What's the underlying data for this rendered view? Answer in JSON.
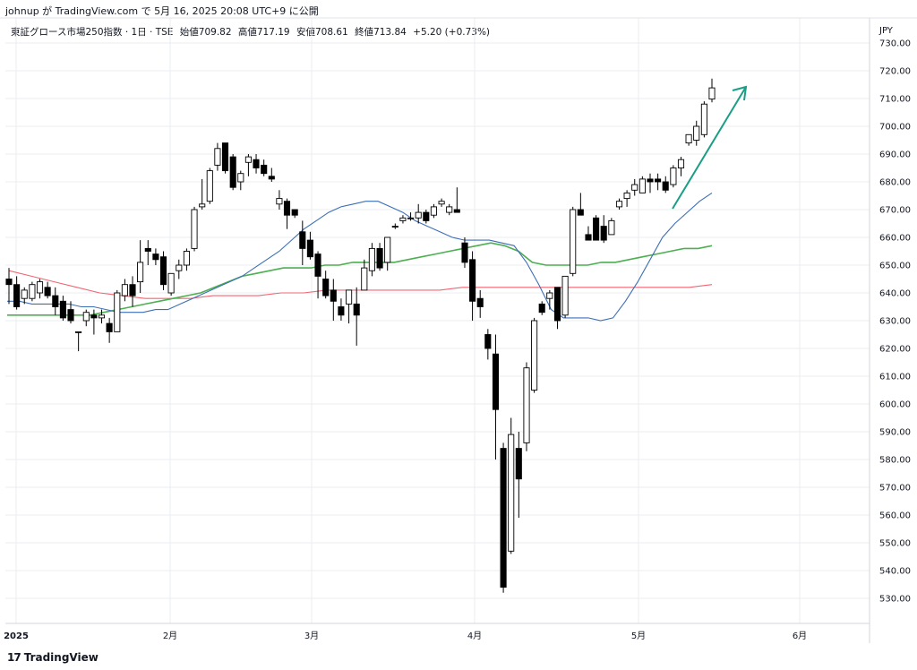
{
  "header": {
    "published_by": "johnup が TradingView.com で 5月 16, 2025 20:08 UTC+9 に公開"
  },
  "symbol": {
    "name": "東証グロース市場250指数 · 1日 · TSE",
    "open_label": "始値",
    "open": "709.82",
    "high_label": "高値",
    "high": "717.19",
    "low_label": "安値",
    "low": "708.61",
    "close_label": "終値",
    "close": "713.84",
    "change": "+5.20 (+0.73%)"
  },
  "currency": "JPY",
  "footer": {
    "logo_text": "TradingView",
    "logo_mark": "17"
  },
  "colors": {
    "up_fill": "#ffffff",
    "down_fill": "#000000",
    "ma_short": "#3d6fb6",
    "ma_mid": "#4caf50",
    "ma_long": "#f06674",
    "arrow": "#1a9e86",
    "grid": "#e8ecf2"
  },
  "chart_data": {
    "type": "candlestick",
    "y_axis_ticks": [
      "730.00",
      "720.00",
      "710.00",
      "700.00",
      "690.00",
      "680.00",
      "670.00",
      "660.00",
      "650.00",
      "640.00",
      "630.00",
      "620.00",
      "610.00",
      "600.00",
      "590.00",
      "580.00",
      "570.00",
      "560.00",
      "550.00",
      "540.00",
      "530.00"
    ],
    "ylim": [
      526,
      734
    ],
    "x_axis_labels": [
      "2025",
      "2月",
      "3月",
      "4月",
      "5月",
      "6月"
    ],
    "grid": true,
    "candles": [
      {
        "o": 645,
        "h": 649,
        "l": 636,
        "c": 643
      },
      {
        "o": 643,
        "h": 646,
        "l": 634,
        "c": 635
      },
      {
        "o": 638,
        "h": 642,
        "l": 636,
        "c": 641
      },
      {
        "o": 638,
        "h": 644,
        "l": 637,
        "c": 643
      },
      {
        "o": 640,
        "h": 645,
        "l": 638,
        "c": 644
      },
      {
        "o": 642,
        "h": 644,
        "l": 638,
        "c": 639
      },
      {
        "o": 639,
        "h": 642,
        "l": 632,
        "c": 635
      },
      {
        "o": 637,
        "h": 639,
        "l": 630,
        "c": 631
      },
      {
        "o": 634,
        "h": 637,
        "l": 629,
        "c": 630
      },
      {
        "o": 626,
        "h": 626,
        "l": 619,
        "c": 626
      },
      {
        "o": 630,
        "h": 634,
        "l": 628,
        "c": 633
      },
      {
        "o": 632,
        "h": 634,
        "l": 625,
        "c": 631
      },
      {
        "o": 631,
        "h": 634,
        "l": 629,
        "c": 632
      },
      {
        "o": 629,
        "h": 631,
        "l": 622,
        "c": 626
      },
      {
        "o": 626,
        "h": 641,
        "l": 626,
        "c": 640
      },
      {
        "o": 639,
        "h": 645,
        "l": 637,
        "c": 643
      },
      {
        "o": 643,
        "h": 646,
        "l": 635,
        "c": 639
      },
      {
        "o": 644,
        "h": 659,
        "l": 640,
        "c": 651
      },
      {
        "o": 656,
        "h": 659,
        "l": 650,
        "c": 655
      },
      {
        "o": 654,
        "h": 656,
        "l": 650,
        "c": 652
      },
      {
        "o": 653,
        "h": 655,
        "l": 641,
        "c": 643
      },
      {
        "o": 640,
        "h": 647,
        "l": 639,
        "c": 647
      },
      {
        "o": 648,
        "h": 652,
        "l": 645,
        "c": 650
      },
      {
        "o": 650,
        "h": 656,
        "l": 648,
        "c": 655
      },
      {
        "o": 656,
        "h": 671,
        "l": 655,
        "c": 670
      },
      {
        "o": 671,
        "h": 681,
        "l": 670,
        "c": 672
      },
      {
        "o": 673,
        "h": 685,
        "l": 672,
        "c": 684
      },
      {
        "o": 686,
        "h": 694,
        "l": 684,
        "c": 692
      },
      {
        "o": 694,
        "h": 694,
        "l": 683,
        "c": 684
      },
      {
        "o": 689,
        "h": 690,
        "l": 677,
        "c": 678
      },
      {
        "o": 680,
        "h": 684,
        "l": 677,
        "c": 683
      },
      {
        "o": 687,
        "h": 690,
        "l": 682,
        "c": 689
      },
      {
        "o": 688,
        "h": 690,
        "l": 683,
        "c": 685
      },
      {
        "o": 686,
        "h": 688,
        "l": 682,
        "c": 683
      },
      {
        "o": 682,
        "h": 685,
        "l": 680,
        "c": 681
      },
      {
        "o": 672,
        "h": 677,
        "l": 670,
        "c": 674
      },
      {
        "o": 673,
        "h": 674,
        "l": 663,
        "c": 668
      },
      {
        "o": 670,
        "h": 670,
        "l": 667,
        "c": 668
      },
      {
        "o": 662,
        "h": 666,
        "l": 650,
        "c": 656
      },
      {
        "o": 659,
        "h": 662,
        "l": 652,
        "c": 653
      },
      {
        "o": 654,
        "h": 655,
        "l": 638,
        "c": 646
      },
      {
        "o": 645,
        "h": 648,
        "l": 638,
        "c": 639
      },
      {
        "o": 641,
        "h": 645,
        "l": 630,
        "c": 637
      },
      {
        "o": 635,
        "h": 638,
        "l": 630,
        "c": 632
      },
      {
        "o": 636,
        "h": 641,
        "l": 629,
        "c": 641
      },
      {
        "o": 636,
        "h": 642,
        "l": 621,
        "c": 632
      },
      {
        "o": 641,
        "h": 652,
        "l": 641,
        "c": 649
      },
      {
        "o": 648,
        "h": 658,
        "l": 646,
        "c": 656
      },
      {
        "o": 656,
        "h": 658,
        "l": 648,
        "c": 649
      },
      {
        "o": 651,
        "h": 660,
        "l": 648,
        "c": 660
      },
      {
        "o": 664,
        "h": 665,
        "l": 663,
        "c": 664
      },
      {
        "o": 666,
        "h": 668,
        "l": 665,
        "c": 667
      },
      {
        "o": 667,
        "h": 669,
        "l": 666,
        "c": 667
      },
      {
        "o": 667,
        "h": 672,
        "l": 665,
        "c": 669
      },
      {
        "o": 669,
        "h": 670,
        "l": 665,
        "c": 666
      },
      {
        "o": 668,
        "h": 672,
        "l": 667,
        "c": 671
      },
      {
        "o": 672,
        "h": 674,
        "l": 671,
        "c": 673
      },
      {
        "o": 669,
        "h": 672,
        "l": 668,
        "c": 671
      },
      {
        "o": 670,
        "h": 678,
        "l": 669,
        "c": 669
      },
      {
        "o": 658,
        "h": 660,
        "l": 649,
        "c": 651
      },
      {
        "o": 652,
        "h": 655,
        "l": 630,
        "c": 637
      },
      {
        "o": 638,
        "h": 641,
        "l": 631,
        "c": 635
      },
      {
        "o": 625,
        "h": 627,
        "l": 616,
        "c": 620
      },
      {
        "o": 618,
        "h": 625,
        "l": 580,
        "c": 598
      },
      {
        "o": 584,
        "h": 586,
        "l": 532,
        "c": 534
      },
      {
        "o": 547,
        "h": 595,
        "l": 546,
        "c": 589
      },
      {
        "o": 584,
        "h": 590,
        "l": 559,
        "c": 573
      },
      {
        "o": 586,
        "h": 615,
        "l": 583,
        "c": 613
      },
      {
        "o": 605,
        "h": 631,
        "l": 604,
        "c": 630
      },
      {
        "o": 636,
        "h": 637,
        "l": 632,
        "c": 633
      },
      {
        "o": 638,
        "h": 641,
        "l": 634,
        "c": 640
      },
      {
        "o": 642,
        "h": 642,
        "l": 627,
        "c": 630
      },
      {
        "o": 632,
        "h": 646,
        "l": 631,
        "c": 646
      },
      {
        "o": 647,
        "h": 671,
        "l": 646,
        "c": 670
      },
      {
        "o": 670,
        "h": 676,
        "l": 668,
        "c": 668
      },
      {
        "o": 661,
        "h": 664,
        "l": 659,
        "c": 659
      },
      {
        "o": 667,
        "h": 668,
        "l": 659,
        "c": 659
      },
      {
        "o": 664,
        "h": 668,
        "l": 658,
        "c": 659
      },
      {
        "o": 661,
        "h": 667,
        "l": 661,
        "c": 666
      },
      {
        "o": 671,
        "h": 674,
        "l": 670,
        "c": 673
      },
      {
        "o": 674,
        "h": 677,
        "l": 671,
        "c": 676
      },
      {
        "o": 677,
        "h": 681,
        "l": 675,
        "c": 679
      },
      {
        "o": 676,
        "h": 682,
        "l": 676,
        "c": 681
      },
      {
        "o": 681,
        "h": 683,
        "l": 676,
        "c": 680
      },
      {
        "o": 681,
        "h": 683,
        "l": 677,
        "c": 680
      },
      {
        "o": 680,
        "h": 682,
        "l": 676,
        "c": 677
      },
      {
        "o": 679,
        "h": 686,
        "l": 678,
        "c": 685
      },
      {
        "o": 685,
        "h": 689,
        "l": 682,
        "c": 688
      },
      {
        "o": 694,
        "h": 697,
        "l": 693,
        "c": 697
      },
      {
        "o": 695,
        "h": 702,
        "l": 693,
        "c": 700
      },
      {
        "o": 697,
        "h": 709,
        "l": 696,
        "c": 708
      },
      {
        "o": 709.82,
        "h": 717.19,
        "l": 708.61,
        "c": 713.84
      }
    ],
    "ma_short": [
      637,
      637,
      636,
      636,
      636,
      636,
      635,
      635,
      634,
      633,
      633,
      633,
      634,
      634,
      636,
      638,
      640,
      642,
      644,
      646,
      649,
      652,
      655,
      659,
      663,
      666,
      669,
      671,
      672,
      673,
      673,
      671,
      669,
      666,
      664,
      662,
      660,
      659,
      659,
      659,
      658,
      657,
      651,
      643,
      634,
      631,
      631,
      631,
      630,
      631,
      637,
      644,
      652,
      660,
      665,
      669,
      673,
      676
    ],
    "ma_mid": [
      632,
      632,
      632,
      632,
      632,
      632,
      632,
      633,
      634,
      635,
      636,
      637,
      638,
      639,
      640,
      642,
      644,
      646,
      647,
      648,
      649,
      649,
      649,
      650,
      650,
      651,
      651,
      651,
      651,
      652,
      653,
      654,
      655,
      656,
      657,
      658,
      657,
      655,
      651,
      650,
      650,
      650,
      650,
      651,
      651,
      652,
      653,
      654,
      655,
      656,
      656,
      657
    ],
    "ma_long": [
      648,
      646,
      644,
      642,
      640,
      639,
      638,
      638,
      638,
      639,
      639,
      639,
      640,
      640,
      641,
      641,
      641,
      641,
      641,
      641,
      642,
      642,
      642,
      642,
      642,
      642,
      642,
      642,
      642,
      642,
      642,
      643
    ]
  }
}
